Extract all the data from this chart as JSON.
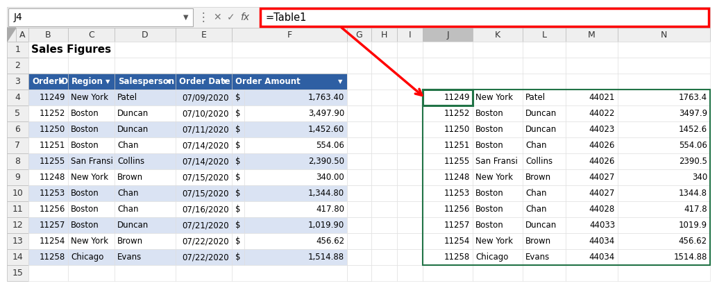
{
  "title": "Sales Figures",
  "formula_bar_cell": "J4",
  "formula_bar_formula": "=Table1",
  "left_table_headers": [
    "OrderID",
    "Region",
    "Salesperson",
    "Order Date",
    "Order Amount"
  ],
  "left_table_data": [
    [
      "11249",
      "New York",
      "Patel",
      "07/09/2020",
      "$",
      "1,763.40"
    ],
    [
      "11252",
      "Boston",
      "Duncan",
      "07/10/2020",
      "$",
      "3,497.90"
    ],
    [
      "11250",
      "Boston",
      "Duncan",
      "07/11/2020",
      "$",
      "1,452.60"
    ],
    [
      "11251",
      "Boston",
      "Chan",
      "07/14/2020",
      "$",
      "554.06"
    ],
    [
      "11255",
      "San Fransi",
      "Collins",
      "07/14/2020",
      "$",
      "2,390.50"
    ],
    [
      "11248",
      "New York",
      "Brown",
      "07/15/2020",
      "$",
      "340.00"
    ],
    [
      "11253",
      "Boston",
      "Chan",
      "07/15/2020",
      "$",
      "1,344.80"
    ],
    [
      "11256",
      "Boston",
      "Chan",
      "07/16/2020",
      "$",
      "417.80"
    ],
    [
      "11257",
      "Boston",
      "Duncan",
      "07/21/2020",
      "$",
      "1,019.90"
    ],
    [
      "11254",
      "New York",
      "Brown",
      "07/22/2020",
      "$",
      "456.62"
    ],
    [
      "11258",
      "Chicago",
      "Evans",
      "07/22/2020",
      "$",
      "1,514.88"
    ]
  ],
  "right_table_data": [
    [
      "11249",
      "New York",
      "Patel",
      "44021",
      "1763.4"
    ],
    [
      "11252",
      "Boston",
      "Duncan",
      "44022",
      "3497.9"
    ],
    [
      "11250",
      "Boston",
      "Duncan",
      "44023",
      "1452.6"
    ],
    [
      "11251",
      "Boston",
      "Chan",
      "44026",
      "554.06"
    ],
    [
      "11255",
      "San Fransi",
      "Collins",
      "44026",
      "2390.5"
    ],
    [
      "11248",
      "New York",
      "Brown",
      "44027",
      "340"
    ],
    [
      "11253",
      "Boston",
      "Chan",
      "44027",
      "1344.8"
    ],
    [
      "11256",
      "Boston",
      "Chan",
      "44028",
      "417.8"
    ],
    [
      "11257",
      "Boston",
      "Duncan",
      "44033",
      "1019.9"
    ],
    [
      "11254",
      "New York",
      "Brown",
      "44034",
      "456.62"
    ],
    [
      "11258",
      "Chicago",
      "Evans",
      "44034",
      "1514.88"
    ]
  ],
  "header_bg": "#2E5FA3",
  "header_fg": "#FFFFFF",
  "row_alt1": "#FFFFFF",
  "row_alt2": "#DAE3F3",
  "grid_color": "#BBBBBB",
  "grid_color_light": "#DDDDDD",
  "formula_box_color": "#FF0000",
  "arrow_color": "#FF0000",
  "selected_cell_color": "#217346",
  "col_header_bg": "#EFEFEF",
  "col_header_selected_bg": "#BFBFBF",
  "row_header_bg": "#EFEFEF",
  "fig_bg": "#FFFFFF",
  "formula_bar_bg": "#F2F2F2",
  "sheet_bg": "#FFFFFF"
}
